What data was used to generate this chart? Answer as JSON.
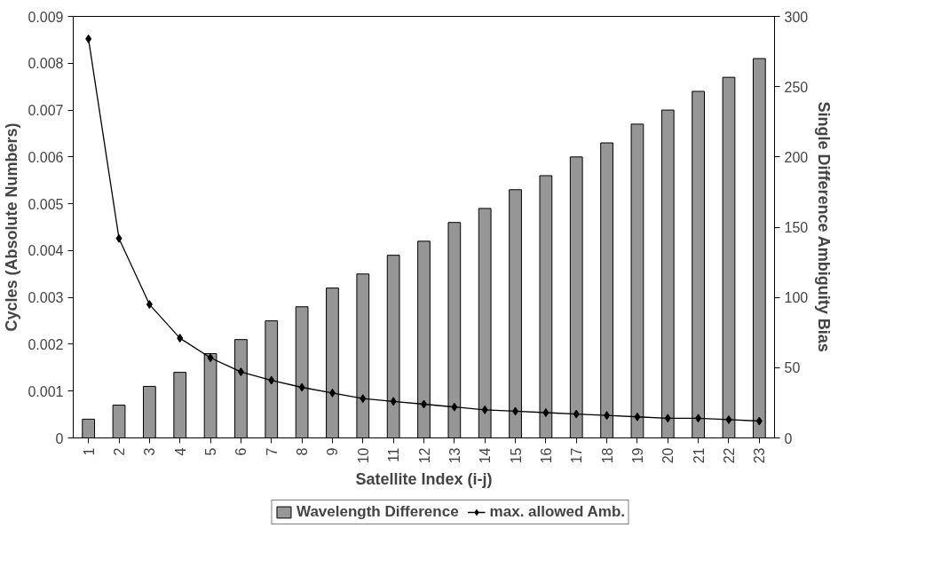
{
  "chart_data": {
    "type": "bar",
    "xlabel": "Satellite Index (i-j)",
    "ylabel": "Cycles (Absolute Numbers)",
    "y2label": "Single Difference Ambiguity Bias",
    "categories": [
      "1",
      "2",
      "3",
      "4",
      "5",
      "6",
      "7",
      "8",
      "9",
      "10",
      "11",
      "12",
      "13",
      "14",
      "15",
      "16",
      "17",
      "18",
      "19",
      "20",
      "21",
      "22",
      "23"
    ],
    "series": [
      {
        "name": "Wavelength Difference",
        "color": "#969696",
        "values": [
          0.0004,
          0.0007,
          0.0011,
          0.0014,
          0.0018,
          0.0021,
          0.0025,
          0.0028,
          0.0032,
          0.0035,
          0.0039,
          0.0042,
          0.0046,
          0.0049,
          0.0053,
          0.0056,
          0.006,
          0.0063,
          0.0067,
          0.007,
          0.0074,
          0.0077,
          0.0081
        ]
      },
      {
        "name": "max. allowed Amb.",
        "type": "line",
        "axis": "y2",
        "color": "#000000",
        "marker": "diamond",
        "values": [
          284,
          142,
          95,
          71,
          57,
          47,
          41,
          36,
          32,
          28,
          26,
          24,
          22,
          20,
          19,
          18,
          17,
          16,
          15,
          14,
          14,
          13,
          12
        ]
      }
    ],
    "ylim": [
      0,
      0.009
    ],
    "yticks": [
      0,
      0.001,
      0.002,
      0.003,
      0.004,
      0.005,
      0.006,
      0.007,
      0.008,
      0.009
    ],
    "y2lim": [
      0,
      300
    ],
    "y2ticks": [
      0,
      50,
      100,
      150,
      200,
      250,
      300
    ],
    "grid": false,
    "legend": "bottom"
  }
}
